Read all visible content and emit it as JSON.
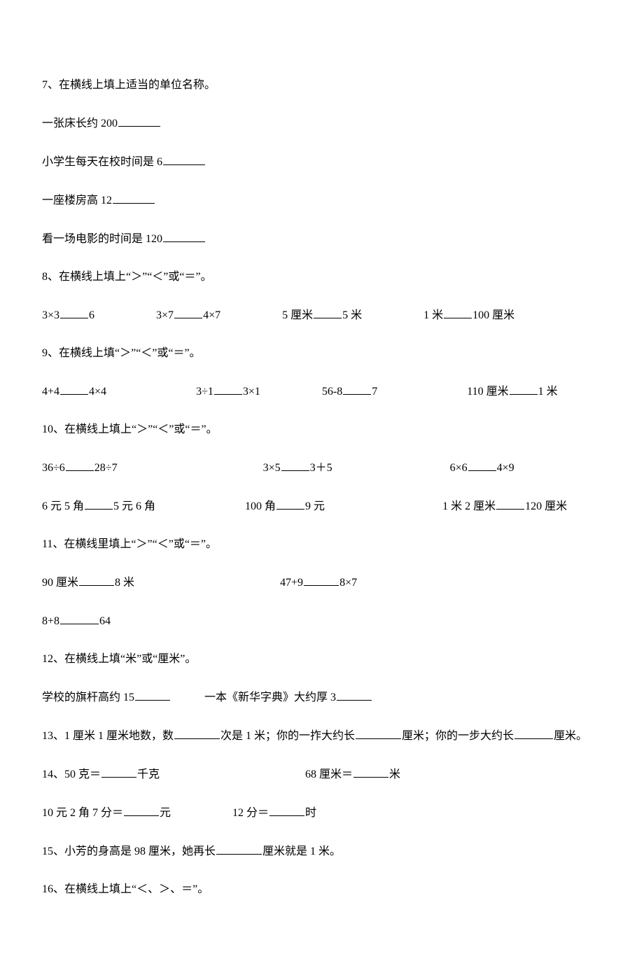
{
  "q7": {
    "title": "7、在横线上填上适当的单位名称。",
    "l1": "一张床长约 200",
    "l2": "小学生每天在校时间是 6",
    "l3": "一座楼房高 12",
    "l4": "看一场电影的时间是 120"
  },
  "q8": {
    "title": "8、在横线上填上“＞”“＜”或“＝”。",
    "a1": "3×3",
    "a2": "6",
    "b1": "3×7",
    "b2": "4×7",
    "c1": "5 厘米",
    "c2": "5 米",
    "d1": "1 米",
    "d2": "100 厘米"
  },
  "q9": {
    "title": "9、在横线上填“＞”“＜”或“＝”。",
    "a1": "4+4",
    "a2": "4×4",
    "b1": "3÷1",
    "b2": "3×1",
    "c1": "56-8",
    "c2": "7",
    "d1": "110 厘米",
    "d2": "1 米"
  },
  "q10": {
    "title": "10、在横线上填上“＞”“＜”或“＝”。",
    "a1": "36÷6",
    "a2": "28÷7",
    "b1": "3×5",
    "b2": "3＋5",
    "c1": "6×6",
    "c2": "4×9",
    "d1": "6 元 5 角",
    "d2": "5 元 6 角",
    "e1": "100 角",
    "e2": "9 元",
    "f1": "1 米 2 厘米",
    "f2": "120 厘米"
  },
  "q11": {
    "title": "11、在横线里填上“＞”“＜”或“＝”。",
    "a1": "90 厘米",
    "a2": "8 米",
    "b1": "47+9",
    "b2": "8×7",
    "c1": "8+8",
    "c2": "64"
  },
  "q12": {
    "title": "12、在横线上填“米”或“厘米”。",
    "a": "学校的旗杆高约 15",
    "b": "一本《新华字典》大约厚 3"
  },
  "q13": {
    "p1": "13、1 厘米 1 厘米地数，数",
    "p2": "次是 1 米；你的一拃大约长",
    "p3": "厘米；你的一步大约长",
    "p4": "厘米。"
  },
  "q14": {
    "a1": "14、50 克＝",
    "a2": "千克",
    "b1": "68 厘米＝",
    "b2": "米",
    "c1": "10 元 2 角 7 分＝",
    "c2": "元",
    "d1": "12 分＝",
    "d2": "时"
  },
  "q15": {
    "p1": "15、小芳的身高是 98 厘米，她再长",
    "p2": "厘米就是 1 米。"
  },
  "q16": {
    "title": "16、在横线上填上“＜、＞、＝”。"
  }
}
